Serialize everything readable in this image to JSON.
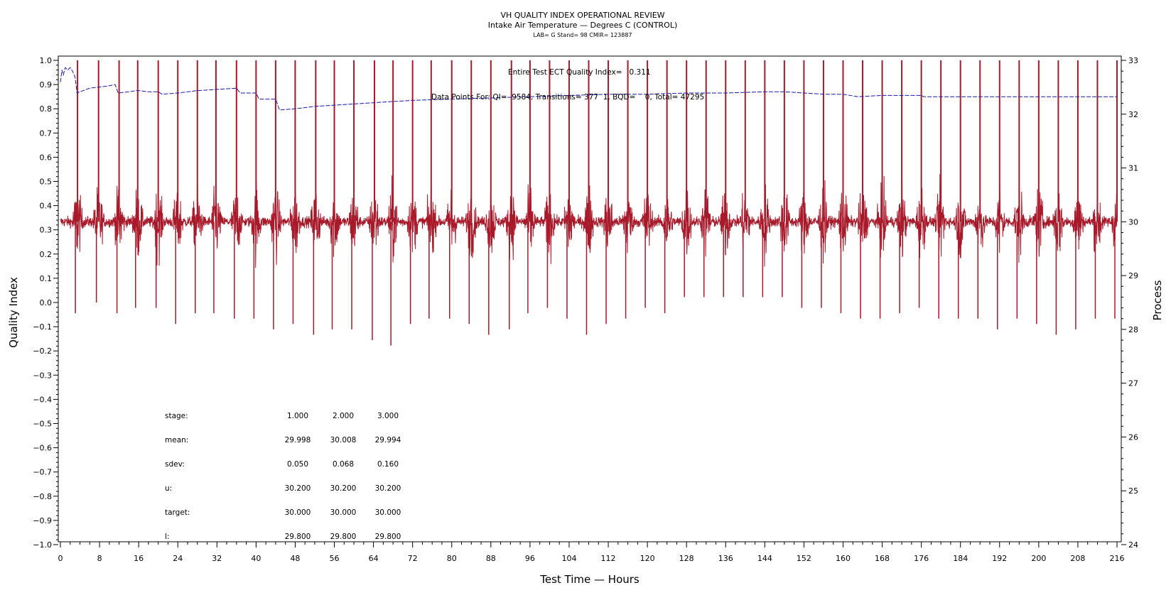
{
  "chart_data": {
    "type": "line",
    "title": "VH QUALITY INDEX OPERATIONAL REVIEW",
    "subtitle": "Intake Air Temperature — Degrees C (CONTROL)",
    "info_line": "LAB= G Stand= 98 CMIR= 123887",
    "xlabel": "Test Time — Hours",
    "ylabel_left": "Quality Index",
    "ylabel_right": "Process",
    "xlim": [
      0,
      216
    ],
    "ylim_left": [
      -1.0,
      1.0
    ],
    "ylim_right": [
      24,
      33
    ],
    "x_ticks": [
      "0",
      "8",
      "16",
      "24",
      "32",
      "40",
      "48",
      "56",
      "64",
      "72",
      "80",
      "88",
      "96",
      "104",
      "112",
      "120",
      "128",
      "136",
      "144",
      "152",
      "160",
      "168",
      "176",
      "184",
      "192",
      "200",
      "208",
      "216"
    ],
    "y_left_ticks": [
      "1.0",
      "0.9",
      "0.8",
      "0.7",
      "0.6",
      "0.5",
      "0.4",
      "0.3",
      "0.2",
      "0.1",
      "0.0",
      "−0.1",
      "−0.2",
      "−0.3",
      "−0.4",
      "−0.5",
      "−0.6",
      "−0.7",
      "−0.8",
      "−0.9",
      "−1.0"
    ],
    "y_right_ticks": [
      "33",
      "32",
      "31",
      "30",
      "29",
      "28",
      "27",
      "26",
      "25",
      "24"
    ],
    "annotations": {
      "quality_index_text": "Entire Test ECT Quality Index=   0.311",
      "data_points_text": "Data Points For: QI=  9584, Transitions= 377  1, BQD=    0, Total= 47295"
    },
    "stats_table": {
      "rows": [
        {
          "label": "stage:",
          "values": [
            "1.000",
            "2.000",
            "3.000"
          ]
        },
        {
          "label": "mean:",
          "values": [
            "29.998",
            "30.008",
            "29.994"
          ]
        },
        {
          "label": "sdev:",
          "values": [
            "0.050",
            "0.068",
            "0.160"
          ]
        },
        {
          "label": "u:",
          "values": [
            "30.200",
            "30.200",
            "30.200"
          ]
        },
        {
          "label": "target:",
          "values": [
            "30.000",
            "30.000",
            "30.000"
          ]
        },
        {
          "label": "l:",
          "values": [
            "29.800",
            "29.800",
            "29.800"
          ]
        }
      ]
    },
    "series": [
      {
        "name": "Quality Index",
        "axis": "left",
        "color": "#1a1aa8",
        "x": [
          0,
          0.3,
          0.6,
          1,
          1.5,
          2,
          2.5,
          3,
          3.4,
          4,
          6,
          8,
          10,
          11.2,
          11.8,
          14,
          15.5,
          16,
          18,
          20,
          20.8,
          24,
          28,
          32,
          36,
          36.8,
          40,
          40.6,
          44,
          44.8,
          48,
          52,
          56,
          60,
          64,
          68,
          72,
          80,
          88,
          96,
          104,
          112,
          120,
          128,
          136,
          144,
          148,
          152,
          156,
          160,
          163,
          168,
          176,
          176.5,
          184,
          192,
          200,
          208,
          216
        ],
        "y": [
          0.91,
          0.96,
          0.94,
          0.97,
          0.96,
          0.97,
          0.955,
          0.93,
          0.865,
          0.87,
          0.885,
          0.89,
          0.895,
          0.9,
          0.865,
          0.87,
          0.875,
          0.875,
          0.87,
          0.87,
          0.86,
          0.865,
          0.875,
          0.88,
          0.885,
          0.865,
          0.865,
          0.84,
          0.84,
          0.795,
          0.8,
          0.81,
          0.815,
          0.82,
          0.825,
          0.83,
          0.835,
          0.84,
          0.845,
          0.85,
          0.855,
          0.86,
          0.86,
          0.865,
          0.865,
          0.87,
          0.87,
          0.865,
          0.86,
          0.86,
          0.85,
          0.855,
          0.855,
          0.85,
          0.85,
          0.85,
          0.85,
          0.85,
          0.85
        ]
      },
      {
        "name": "Process",
        "axis": "right",
        "color": "#a8192a",
        "baseline": 30.0,
        "noise_sdev": 0.05,
        "transitions": {
          "x": [
            3.5,
            7.8,
            12.0,
            15.8,
            20.0,
            24.0,
            28.0,
            31.8,
            36.0,
            40.0,
            44.0,
            48.0,
            52.2,
            56.0,
            60.0,
            64.2,
            68.0,
            72.0,
            75.8,
            80.0,
            84.0,
            88.0,
            92.2,
            96.0,
            100.0,
            104.0,
            108.0,
            112.0,
            116.0,
            120.0,
            124.0,
            128.0,
            132.0,
            136.0,
            140.0,
            144.0,
            148.0,
            152.0,
            156.0,
            160.0,
            164.0,
            168.0,
            172.0,
            176.0,
            180.0,
            184.0,
            188.0,
            192.0,
            196.0,
            200.0,
            204.0,
            208.0,
            212.0,
            216.0
          ],
          "peak": [
            33.0,
            33.0,
            33.0,
            33.0,
            33.0,
            33.0,
            33.0,
            33.0,
            33.0,
            33.0,
            33.0,
            33.0,
            33.0,
            33.0,
            33.0,
            33.0,
            33.0,
            33.0,
            33.0,
            33.0,
            33.0,
            33.0,
            33.0,
            33.0,
            33.0,
            33.0,
            33.0,
            33.0,
            33.0,
            33.0,
            33.0,
            33.0,
            33.0,
            33.0,
            33.0,
            33.0,
            33.0,
            33.0,
            33.0,
            33.0,
            33.0,
            33.0,
            33.0,
            33.0,
            33.0,
            33.0,
            33.0,
            33.0,
            33.0,
            33.0,
            33.0,
            33.0,
            33.0,
            33.0
          ],
          "dip": [
            28.3,
            28.5,
            28.3,
            28.4,
            28.4,
            28.1,
            28.3,
            28.3,
            28.2,
            28.2,
            28.0,
            28.1,
            27.9,
            28.0,
            28.0,
            27.8,
            27.7,
            28.1,
            28.2,
            28.2,
            28.1,
            27.9,
            28.0,
            28.3,
            28.4,
            28.2,
            27.9,
            28.1,
            28.2,
            28.4,
            28.3,
            28.6,
            28.6,
            28.6,
            28.6,
            28.6,
            28.6,
            28.4,
            28.4,
            28.3,
            28.2,
            28.2,
            28.3,
            28.4,
            28.2,
            28.2,
            28.2,
            28.0,
            28.2,
            28.1,
            27.9,
            28.0,
            28.2,
            28.2
          ]
        }
      }
    ]
  }
}
